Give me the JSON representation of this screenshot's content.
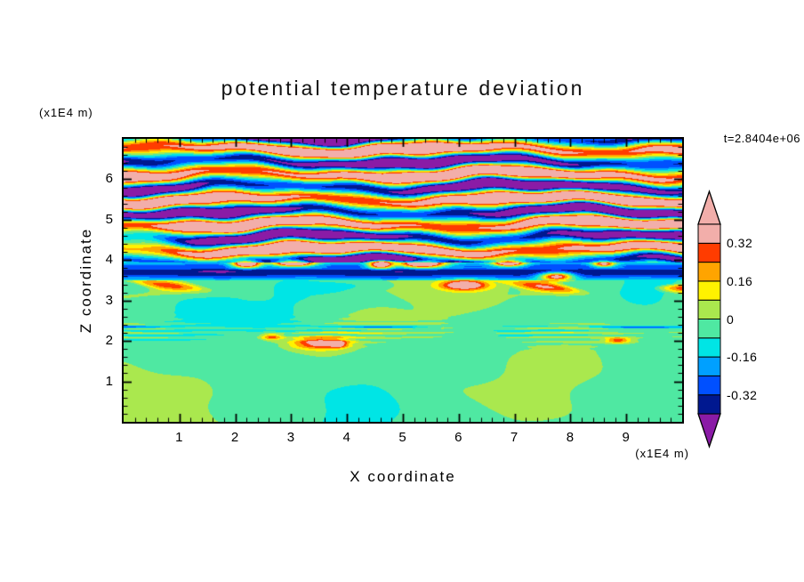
{
  "title": "potential temperature deviation",
  "time_label": "t=2.8404e+06",
  "axes": {
    "x": {
      "label": "X coordinate",
      "unit": "(x1E4 m)",
      "min": 0,
      "max": 10,
      "major_ticks": [
        1,
        2,
        3,
        4,
        5,
        6,
        7,
        8,
        9
      ],
      "minor_step": 0.2
    },
    "z": {
      "label": "Z coordinate",
      "unit": "(x1E4 m)",
      "min": 0,
      "max": 7,
      "major_ticks": [
        1,
        2,
        3,
        4,
        5,
        6
      ],
      "minor_step": 0.2
    }
  },
  "colorbar": {
    "levels": [
      -0.4,
      -0.32,
      -0.24,
      -0.16,
      -0.08,
      0,
      0.08,
      0.16,
      0.24,
      0.32,
      0.4
    ],
    "colors": [
      "#001890",
      "#0050ff",
      "#00a0ff",
      "#00e5e5",
      "#4fe8a2",
      "#aae84e",
      "#fff200",
      "#ffa400",
      "#ff3c00",
      "#f2aeaa"
    ],
    "below_color": "#8a1ba6",
    "above_color": "#f2aeaa",
    "tick_values": [
      0.32,
      0.16,
      0,
      -0.16,
      -0.32
    ],
    "tick_labels": [
      "0.32",
      "0.16",
      "0",
      "-0.16",
      "-0.32"
    ]
  },
  "chart_data": {
    "type": "heatmap",
    "title": "potential temperature deviation",
    "xlabel": "X coordinate (x1E4 m)",
    "ylabel": "Z coordinate (x1E4 m)",
    "x_range": [
      0,
      10
    ],
    "z_range": [
      0,
      7
    ],
    "time_stamp": "t=2.8404e+06",
    "contour_levels": [
      -0.4,
      -0.32,
      -0.24,
      -0.16,
      -0.08,
      0,
      0.08,
      0.16,
      0.24,
      0.32,
      0.4
    ],
    "palette": [
      "#8a1ba6",
      "#001890",
      "#0050ff",
      "#00a0ff",
      "#00e5e5",
      "#4fe8a2",
      "#aae84e",
      "#fff200",
      "#ffa400",
      "#ff3c00",
      "#f2aeaa"
    ],
    "legend_position": "right",
    "description": "Filled-contour x-z cross section of potential temperature deviation from a stratified-turbulence simulation. Below z=3.5e4 m the field is weak (mostly -0.08..0.08, spring-green with yellow-green blobs, thin streak layer near z=2.2e4 m and isolated warm spots near z=2e4 m). A strong negative horizontal stripe (navy with a bright blue line) spans the domain near z=3.75e4 m with red/pink warm blobs along it. Above z=4e4 m the field is dominated by large-amplitude wavy horizontal bands alternating beyond +0.4 (pink) and -0.4 (purple) with thin rainbow fringes between bands.",
    "field_model": {
      "wave": {
        "z_min": 3.95,
        "wavelength": 0.62,
        "amplitude": 0.62,
        "phase": 4.7,
        "damp": {
          "x": 0.25,
          "z": 4.55,
          "sx": 0.8,
          "sz": 0.45,
          "k": 0.75
        }
      },
      "stripe": {
        "z_min": 3.5,
        "edge": 0.12,
        "depth": 0.27,
        "line_z": 3.8,
        "line_sigma": 0.04,
        "line_amp": 0.09
      },
      "lower": {
        "base": -0.035,
        "blob_amp": 0.065,
        "detail_amp": 0.02,
        "streak_z": 2.2,
        "streak_amp": 0.1,
        "dash_z": 2.34,
        "dash_amp": 0.25,
        "pink_z": 3.35,
        "pink_amp": 0.55
      },
      "spots": [
        {
          "x": 2.2,
          "z": 3.9,
          "sx": 0.25,
          "sz": 0.09,
          "a": 0.85
        },
        {
          "x": 3.05,
          "z": 3.92,
          "sx": 0.35,
          "sz": 0.08,
          "a": 0.8
        },
        {
          "x": 4.6,
          "z": 3.88,
          "sx": 0.22,
          "sz": 0.09,
          "a": 0.8
        },
        {
          "x": 5.35,
          "z": 3.9,
          "sx": 0.4,
          "sz": 0.09,
          "a": 0.85
        },
        {
          "x": 6.9,
          "z": 3.92,
          "sx": 0.28,
          "sz": 0.08,
          "a": 0.75
        },
        {
          "x": 7.75,
          "z": 3.6,
          "sx": 0.3,
          "sz": 0.1,
          "a": 0.7
        },
        {
          "x": 8.6,
          "z": 3.9,
          "sx": 0.2,
          "sz": 0.07,
          "a": 0.6
        },
        {
          "x": 3.5,
          "z": 1.95,
          "sx": 0.5,
          "sz": 0.16,
          "a": 0.42
        },
        {
          "x": 3.85,
          "z": 1.92,
          "sx": 0.14,
          "sz": 0.08,
          "a": 0.3
        },
        {
          "x": 2.65,
          "z": 2.1,
          "sx": 0.2,
          "sz": 0.08,
          "a": 0.32
        },
        {
          "x": 6.1,
          "z": 3.38,
          "sx": 0.4,
          "sz": 0.12,
          "a": 0.5
        },
        {
          "x": 8.85,
          "z": 2.02,
          "sx": 0.22,
          "sz": 0.07,
          "a": 0.32
        }
      ]
    }
  }
}
